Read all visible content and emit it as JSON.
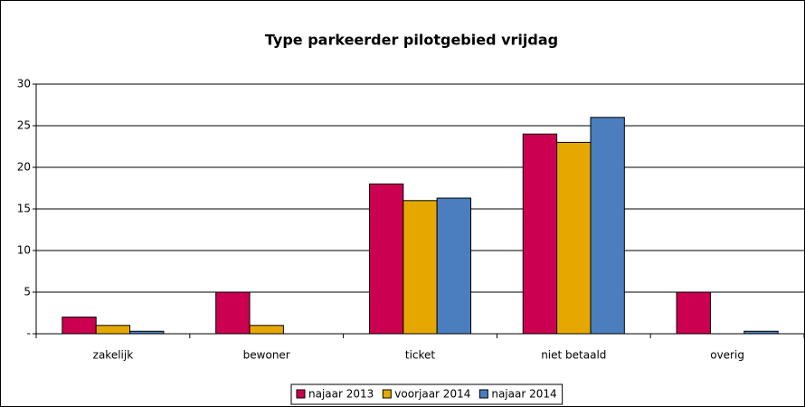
{
  "chart_data": {
    "type": "bar",
    "title": "Type parkeerder pilotgebied vrijdag",
    "categories": [
      "zakelijk",
      "bewoner",
      "ticket",
      "niet betaald",
      "overig"
    ],
    "series": [
      {
        "name": "najaar 2013",
        "color": "#cc0050",
        "values": [
          2,
          5,
          18,
          24,
          5
        ]
      },
      {
        "name": "voorjaar 2014",
        "color": "#e6a800",
        "values": [
          1,
          1,
          16,
          23,
          0
        ]
      },
      {
        "name": "najaar 2014",
        "color": "#4a7ebf",
        "values": [
          0.3,
          0,
          16.3,
          26,
          0.3
        ]
      }
    ],
    "ylim": [
      0,
      30
    ],
    "yticks": [
      {
        "value": 0,
        "label": "-"
      },
      5,
      10,
      15,
      20,
      25,
      30
    ],
    "grid": true,
    "legend": "bottom"
  }
}
